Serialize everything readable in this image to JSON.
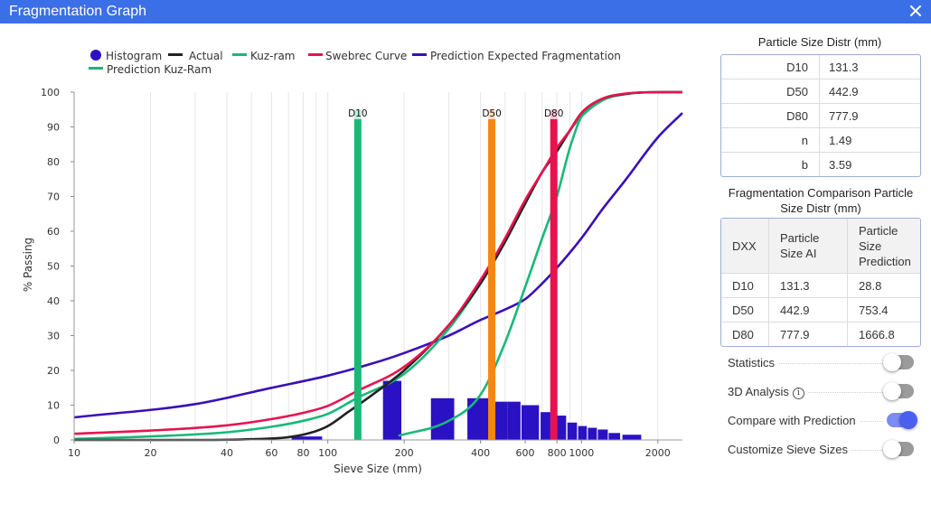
{
  "window": {
    "title": "Fragmentation Graph"
  },
  "chart_data": {
    "type": "line",
    "xlabel": "Sieve Size (mm)",
    "ylabel": "% Passing",
    "x_scale": "log",
    "xlim": [
      10,
      2500
    ],
    "ylim": [
      0,
      100
    ],
    "x_ticks": [
      10,
      20,
      40,
      60,
      80,
      100,
      200,
      400,
      600,
      800,
      1000,
      2000
    ],
    "y_ticks": [
      0,
      10,
      20,
      30,
      40,
      50,
      60,
      70,
      80,
      90,
      100
    ],
    "legend_position": "top-left",
    "legend": [
      "Histogram",
      "Actual",
      "Kuz-ram",
      "Swebrec Curve",
      "Prediction Expected Fragmentation",
      "Prediction Kuz-Ram"
    ],
    "colors": {
      "histogram": "#2b11c4",
      "actual": "#222222",
      "kuzram": "#19b877",
      "swebrec": "#e8134e",
      "prediction": "#3a0fb8",
      "d10": "#19b877",
      "d50": "#f5860f",
      "d80": "#e8134e"
    },
    "series": [
      {
        "name": "Actual",
        "x": [
          10,
          30,
          50,
          70,
          85,
          100,
          120,
          150,
          200,
          300,
          400,
          500,
          600,
          700,
          800,
          900,
          1000,
          1200,
          1500,
          2000,
          2500
        ],
        "y": [
          0,
          0,
          0.2,
          0.8,
          2,
          4,
          8,
          13,
          20,
          33,
          45,
          57,
          68,
          77,
          83,
          89,
          94,
          98,
          99.5,
          100,
          100
        ]
      },
      {
        "name": "Kuz-ram",
        "x": [
          10,
          20,
          40,
          60,
          80,
          100,
          130,
          200,
          300,
          400,
          500,
          600,
          700,
          800,
          900,
          1000,
          1200,
          1500,
          2000,
          2500
        ],
        "y": [
          0.3,
          1,
          2.2,
          3.8,
          5.5,
          7.5,
          12,
          19,
          32,
          45,
          57,
          68,
          77,
          83,
          89,
          93,
          97.5,
          99.5,
          100,
          100
        ]
      },
      {
        "name": "Swebrec Curve",
        "x": [
          10,
          20,
          40,
          60,
          80,
          100,
          130,
          200,
          300,
          400,
          500,
          600,
          700,
          800,
          900,
          1000,
          1200,
          1500,
          2000,
          2500
        ],
        "y": [
          1.8,
          2.7,
          4.2,
          6,
          7.8,
          9.8,
          14,
          21,
          33,
          46,
          58,
          69,
          77,
          84,
          89,
          94,
          98,
          99.6,
          100,
          100
        ]
      },
      {
        "name": "Prediction Expected Fragmentation",
        "x": [
          10,
          30,
          60,
          100,
          150,
          200,
          300,
          400,
          500,
          600,
          700,
          800,
          1000,
          1200,
          1500,
          2000,
          2500
        ],
        "y": [
          6.5,
          10.3,
          15,
          18.5,
          22,
          25,
          30,
          34.5,
          37.5,
          40.5,
          45,
          49.5,
          58,
          66,
          75,
          87,
          94
        ]
      },
      {
        "name": "Prediction Kuz-Ram",
        "x": [
          190,
          300,
          400,
          500,
          600,
          700,
          800,
          900,
          1000,
          1200
        ],
        "y": [
          1.2,
          5.5,
          13,
          28,
          44,
          58,
          70,
          84,
          93,
          97.5
        ]
      }
    ],
    "histogram": {
      "series": "Histogram",
      "bins": [
        {
          "x0": 72,
          "x1": 95,
          "value": 1
        },
        {
          "x0": 165,
          "x1": 195,
          "value": 17
        },
        {
          "x0": 255,
          "x1": 315,
          "value": 12
        },
        {
          "x0": 355,
          "x1": 430,
          "value": 12
        },
        {
          "x0": 445,
          "x1": 510,
          "value": 11
        },
        {
          "x0": 510,
          "x1": 575,
          "value": 11
        },
        {
          "x0": 580,
          "x1": 680,
          "value": 10
        },
        {
          "x0": 690,
          "x1": 780,
          "value": 8
        },
        {
          "x0": 790,
          "x1": 870,
          "value": 7
        },
        {
          "x0": 880,
          "x1": 960,
          "value": 5
        },
        {
          "x0": 970,
          "x1": 1050,
          "value": 4
        },
        {
          "x0": 1060,
          "x1": 1150,
          "value": 3.5
        },
        {
          "x0": 1160,
          "x1": 1270,
          "value": 3
        },
        {
          "x0": 1280,
          "x1": 1420,
          "value": 2
        },
        {
          "x0": 1450,
          "x1": 1720,
          "value": 1.5
        }
      ]
    },
    "markers": [
      {
        "label": "D10",
        "x": 131.3,
        "color": "#19b877"
      },
      {
        "label": "D50",
        "x": 442.9,
        "color": "#f5860f"
      },
      {
        "label": "D80",
        "x": 777.9,
        "color": "#e8134e"
      }
    ]
  },
  "psd": {
    "title": "Particle Size Distr (mm)",
    "rows": [
      {
        "label": "D10",
        "value": "131.3"
      },
      {
        "label": "D50",
        "value": "442.9"
      },
      {
        "label": "D80",
        "value": "777.9"
      },
      {
        "label": "n",
        "value": "1.49"
      },
      {
        "label": "b",
        "value": "3.59"
      }
    ]
  },
  "comparison": {
    "title": "Fragmentation Comparison Particle Size Distr (mm)",
    "headers": [
      "DXX",
      "Particle Size AI",
      "Particle Size Prediction"
    ],
    "rows": [
      {
        "dxx": "D10",
        "ai": "131.3",
        "pred": "28.8"
      },
      {
        "dxx": "D50",
        "ai": "442.9",
        "pred": "753.4"
      },
      {
        "dxx": "D80",
        "ai": "777.9",
        "pred": "1666.8"
      }
    ]
  },
  "toggles": {
    "statistics": {
      "label": "Statistics",
      "on": false
    },
    "analysis3d": {
      "label": "3D Analysis",
      "on": false
    },
    "compare": {
      "label": "Compare with Prediction",
      "on": true
    },
    "sieve": {
      "label": "Customize Sieve Sizes",
      "on": false
    }
  }
}
